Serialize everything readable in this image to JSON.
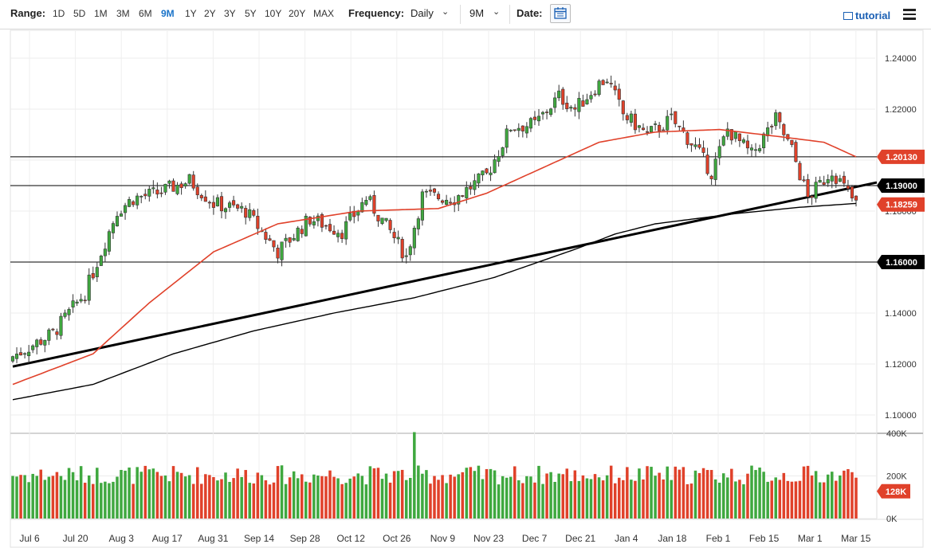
{
  "toolbar": {
    "range_label": "Range:",
    "ranges": [
      "1D",
      "5D",
      "1M",
      "3M",
      "6M",
      "9M",
      "1Y",
      "2Y",
      "3Y",
      "5Y",
      "10Y",
      "20Y",
      "MAX"
    ],
    "active_range": "9M",
    "frequency_label": "Frequency:",
    "frequency_value": "Daily",
    "period_value": "9M",
    "date_label": "Date:",
    "tutorial_label": "tutorial"
  },
  "chart_data": {
    "type": "candlestick",
    "x_tick_labels": [
      "Jul 6",
      "Jul 20",
      "Aug 3",
      "Aug 17",
      "Aug 31",
      "Sep 14",
      "Sep 28",
      "Oct 12",
      "Oct 26",
      "Nov 9",
      "Nov 23",
      "Dec 7",
      "Dec 21",
      "Jan 4",
      "Jan 18",
      "Feb 1",
      "Feb 15",
      "Mar 1",
      "Mar 15"
    ],
    "price_axis": {
      "ylim": [
        1.095,
        1.245
      ],
      "ticks": [
        "1.24000",
        "1.22000",
        "1.20000",
        "1.18000",
        "1.16000",
        "1.14000",
        "1.12000",
        "1.10000"
      ]
    },
    "volume_axis": {
      "ylim": [
        0,
        400000
      ],
      "ticks": [
        "400K",
        "200K",
        "0K"
      ]
    },
    "horizontal_levels": [
      "1.19000",
      "1.16000"
    ],
    "horizontal_level_values": [
      1.2013,
      1.19,
      1.16
    ],
    "price_labels": [
      {
        "text": "1.20130",
        "color": "#e0412a"
      },
      {
        "text": "1.19000",
        "color": "#000000"
      },
      {
        "text": "1.18259",
        "color": "#e0412a"
      },
      {
        "text": "1.16000",
        "color": "#000000"
      }
    ],
    "volume_label": {
      "text": "128K",
      "color": "#e0412a"
    },
    "colors": {
      "up": "#3fa83f",
      "down": "#e0412a",
      "ma50": "#e0412a",
      "ma200": "#000000",
      "trend": "#000000"
    },
    "anchors": [
      {
        "i": 0,
        "close": 1.123
      },
      {
        "i": 10,
        "close": 1.132
      },
      {
        "i": 18,
        "close": 1.148
      },
      {
        "i": 26,
        "close": 1.18
      },
      {
        "i": 30,
        "close": 1.185
      },
      {
        "i": 36,
        "close": 1.187
      },
      {
        "i": 44,
        "close": 1.192
      },
      {
        "i": 50,
        "close": 1.183
      },
      {
        "i": 58,
        "close": 1.18
      },
      {
        "i": 66,
        "close": 1.164
      },
      {
        "i": 74,
        "close": 1.177
      },
      {
        "i": 82,
        "close": 1.172
      },
      {
        "i": 88,
        "close": 1.185
      },
      {
        "i": 94,
        "close": 1.172
      },
      {
        "i": 98,
        "close": 1.162
      },
      {
        "i": 102,
        "close": 1.186
      },
      {
        "i": 110,
        "close": 1.185
      },
      {
        "i": 118,
        "close": 1.194
      },
      {
        "i": 124,
        "close": 1.213
      },
      {
        "i": 130,
        "close": 1.214
      },
      {
        "i": 136,
        "close": 1.225
      },
      {
        "i": 140,
        "close": 1.22
      },
      {
        "i": 146,
        "close": 1.23
      },
      {
        "i": 148,
        "close": 1.232
      },
      {
        "i": 152,
        "close": 1.218
      },
      {
        "i": 158,
        "close": 1.21
      },
      {
        "i": 164,
        "close": 1.216
      },
      {
        "i": 170,
        "close": 1.205
      },
      {
        "i": 174,
        "close": 1.195
      },
      {
        "i": 178,
        "close": 1.212
      },
      {
        "i": 184,
        "close": 1.202
      },
      {
        "i": 190,
        "close": 1.216
      },
      {
        "i": 194,
        "close": 1.204
      },
      {
        "i": 198,
        "close": 1.185
      },
      {
        "i": 204,
        "close": 1.196
      },
      {
        "i": 208,
        "close": 1.187
      },
      {
        "i": 210,
        "close": 1.1826
      }
    ],
    "count": 211,
    "ma50_anchors": [
      {
        "i": 0,
        "v": 1.112
      },
      {
        "i": 20,
        "v": 1.124
      },
      {
        "i": 34,
        "v": 1.144
      },
      {
        "i": 50,
        "v": 1.164
      },
      {
        "i": 66,
        "v": 1.175
      },
      {
        "i": 86,
        "v": 1.18
      },
      {
        "i": 106,
        "v": 1.181
      },
      {
        "i": 118,
        "v": 1.187
      },
      {
        "i": 132,
        "v": 1.197
      },
      {
        "i": 146,
        "v": 1.207
      },
      {
        "i": 160,
        "v": 1.211
      },
      {
        "i": 176,
        "v": 1.212
      },
      {
        "i": 192,
        "v": 1.209
      },
      {
        "i": 202,
        "v": 1.207
      },
      {
        "i": 210,
        "v": 1.2013
      }
    ],
    "ma200_anchors": [
      {
        "i": 0,
        "v": 1.106
      },
      {
        "i": 20,
        "v": 1.112
      },
      {
        "i": 40,
        "v": 1.124
      },
      {
        "i": 60,
        "v": 1.133
      },
      {
        "i": 80,
        "v": 1.14
      },
      {
        "i": 100,
        "v": 1.146
      },
      {
        "i": 120,
        "v": 1.154
      },
      {
        "i": 140,
        "v": 1.165
      },
      {
        "i": 150,
        "v": 1.171
      },
      {
        "i": 160,
        "v": 1.175
      },
      {
        "i": 180,
        "v": 1.179
      },
      {
        "i": 196,
        "v": 1.1815
      },
      {
        "i": 210,
        "v": 1.183
      }
    ],
    "trendline": [
      {
        "i": 0,
        "v": 1.119
      },
      {
        "i": 210,
        "v": 1.1895
      }
    ]
  }
}
